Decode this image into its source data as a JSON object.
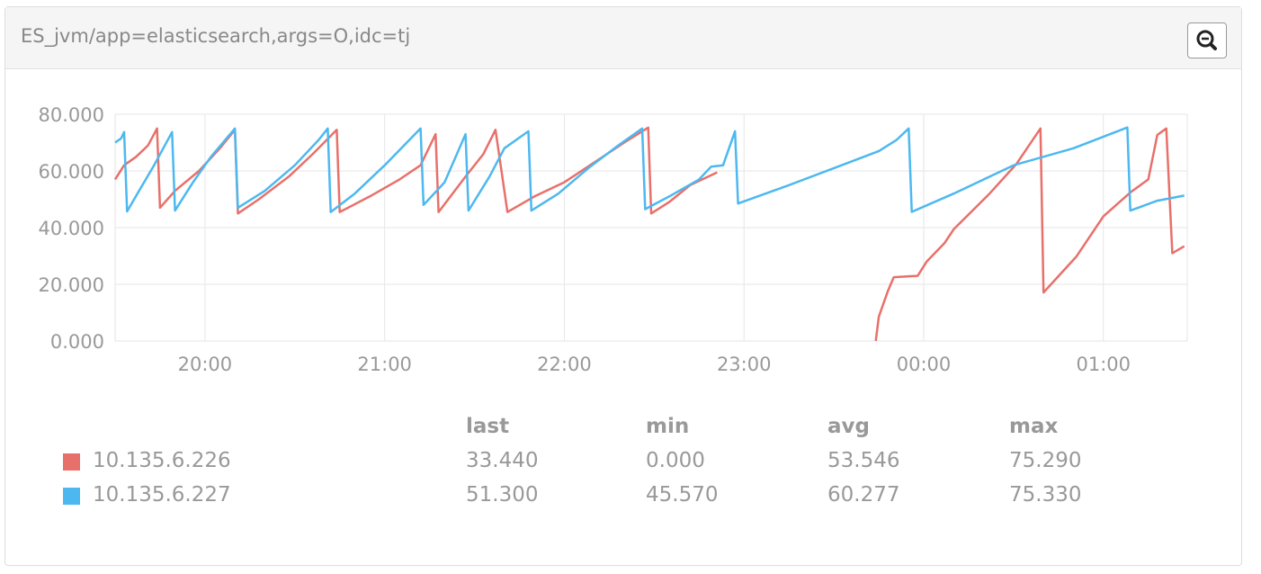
{
  "chart_data": {
    "type": "line",
    "title": "ES_jvm/app=elasticsearch,args=O,idc=tj",
    "xlim": [
      "19:30",
      "01:28"
    ],
    "xticks": [
      "20:00",
      "21:00",
      "22:00",
      "23:00",
      "00:00",
      "01:00"
    ],
    "ylim": [
      0,
      80
    ],
    "yticks": [
      {
        "value": 0,
        "label": "0.000"
      },
      {
        "value": 20,
        "label": "20.000"
      },
      {
        "value": 40,
        "label": "40.000"
      },
      {
        "value": 60,
        "label": "60.000"
      },
      {
        "value": 80,
        "label": "80.000"
      }
    ],
    "grid": true,
    "series": [
      {
        "name": "10.135.6.226",
        "color": "#e8706a",
        "x": [
          "19:30",
          "19:33",
          "19:37",
          "19:41",
          "19:44",
          "19:45",
          "19:50",
          "19:58",
          "20:05",
          "20:10",
          "20:11",
          "20:18",
          "20:28",
          "20:36",
          "20:44",
          "20:45",
          "20:55",
          "21:05",
          "21:12",
          "21:17",
          "21:18",
          "21:27",
          "21:33",
          "21:37",
          "21:41",
          "21:50",
          "22:00",
          "22:10",
          "22:20",
          "22:28",
          "22:29",
          "22:35",
          "22:42",
          "22:51",
          "22:52",
          "23:44",
          "23:45",
          "23:48",
          "23:50",
          "23:58",
          "00:01",
          "00:07",
          "00:10",
          "00:22",
          "00:31",
          "00:39",
          "00:40",
          "00:51",
          "01:00",
          "01:09",
          "01:15",
          "01:18",
          "01:21",
          "01:23",
          "01:27"
        ],
        "values": [
          57,
          62,
          65,
          69,
          75,
          47,
          53,
          60,
          68,
          74.5,
          45,
          50,
          58,
          66,
          74.5,
          45.5,
          51,
          57,
          62,
          73,
          45.5,
          58,
          66,
          74.5,
          45.5,
          51,
          56,
          63,
          70,
          75.29,
          45,
          49,
          55,
          59.5,
          null,
          0,
          8.6,
          17.5,
          22.5,
          23,
          28,
          34.6,
          39.4,
          52,
          62.5,
          75,
          17.1,
          29.8,
          44,
          52.4,
          57,
          72.7,
          75,
          31,
          33.44
        ]
      },
      {
        "name": "10.135.6.227",
        "color": "#4db8f0",
        "x": [
          "19:30",
          "19:32",
          "19:33",
          "19:34",
          "19:38",
          "19:43",
          "19:49",
          "19:50",
          "19:56",
          "20:02",
          "20:10",
          "20:11",
          "20:20",
          "20:30",
          "20:38",
          "20:41",
          "20:42",
          "20:50",
          "21:00",
          "21:12",
          "21:13",
          "21:20",
          "21:27",
          "21:28",
          "21:35",
          "21:40",
          "21:48",
          "21:49",
          "21:58",
          "22:08",
          "22:18",
          "22:26",
          "22:27",
          "22:35",
          "22:45",
          "22:49",
          "22:53",
          "22:57",
          "22:58",
          "23:15",
          "23:30",
          "23:45",
          "23:51",
          "23:55",
          "23:56",
          "00:10",
          "00:30",
          "00:50",
          "01:08",
          "01:09",
          "01:18",
          "01:27"
        ],
        "values": [
          70,
          71.5,
          73.7,
          45.7,
          53,
          62,
          73.7,
          46,
          56,
          65,
          75,
          47,
          53,
          62,
          71,
          75,
          45.5,
          52,
          62,
          75,
          48,
          56,
          73,
          46,
          58,
          68,
          74,
          46,
          52,
          61,
          69,
          75,
          46.5,
          51,
          57,
          61.5,
          62,
          74,
          48.5,
          55,
          61,
          67,
          71,
          75,
          45.57,
          52,
          62,
          68,
          75.33,
          46,
          49.5,
          51.3
        ]
      }
    ]
  },
  "legend_table": {
    "columns": [
      "last",
      "min",
      "avg",
      "max"
    ],
    "rows": [
      [
        "33.440",
        "0.000",
        "53.546",
        "75.290"
      ],
      [
        "51.300",
        "45.570",
        "60.277",
        "75.330"
      ]
    ]
  }
}
